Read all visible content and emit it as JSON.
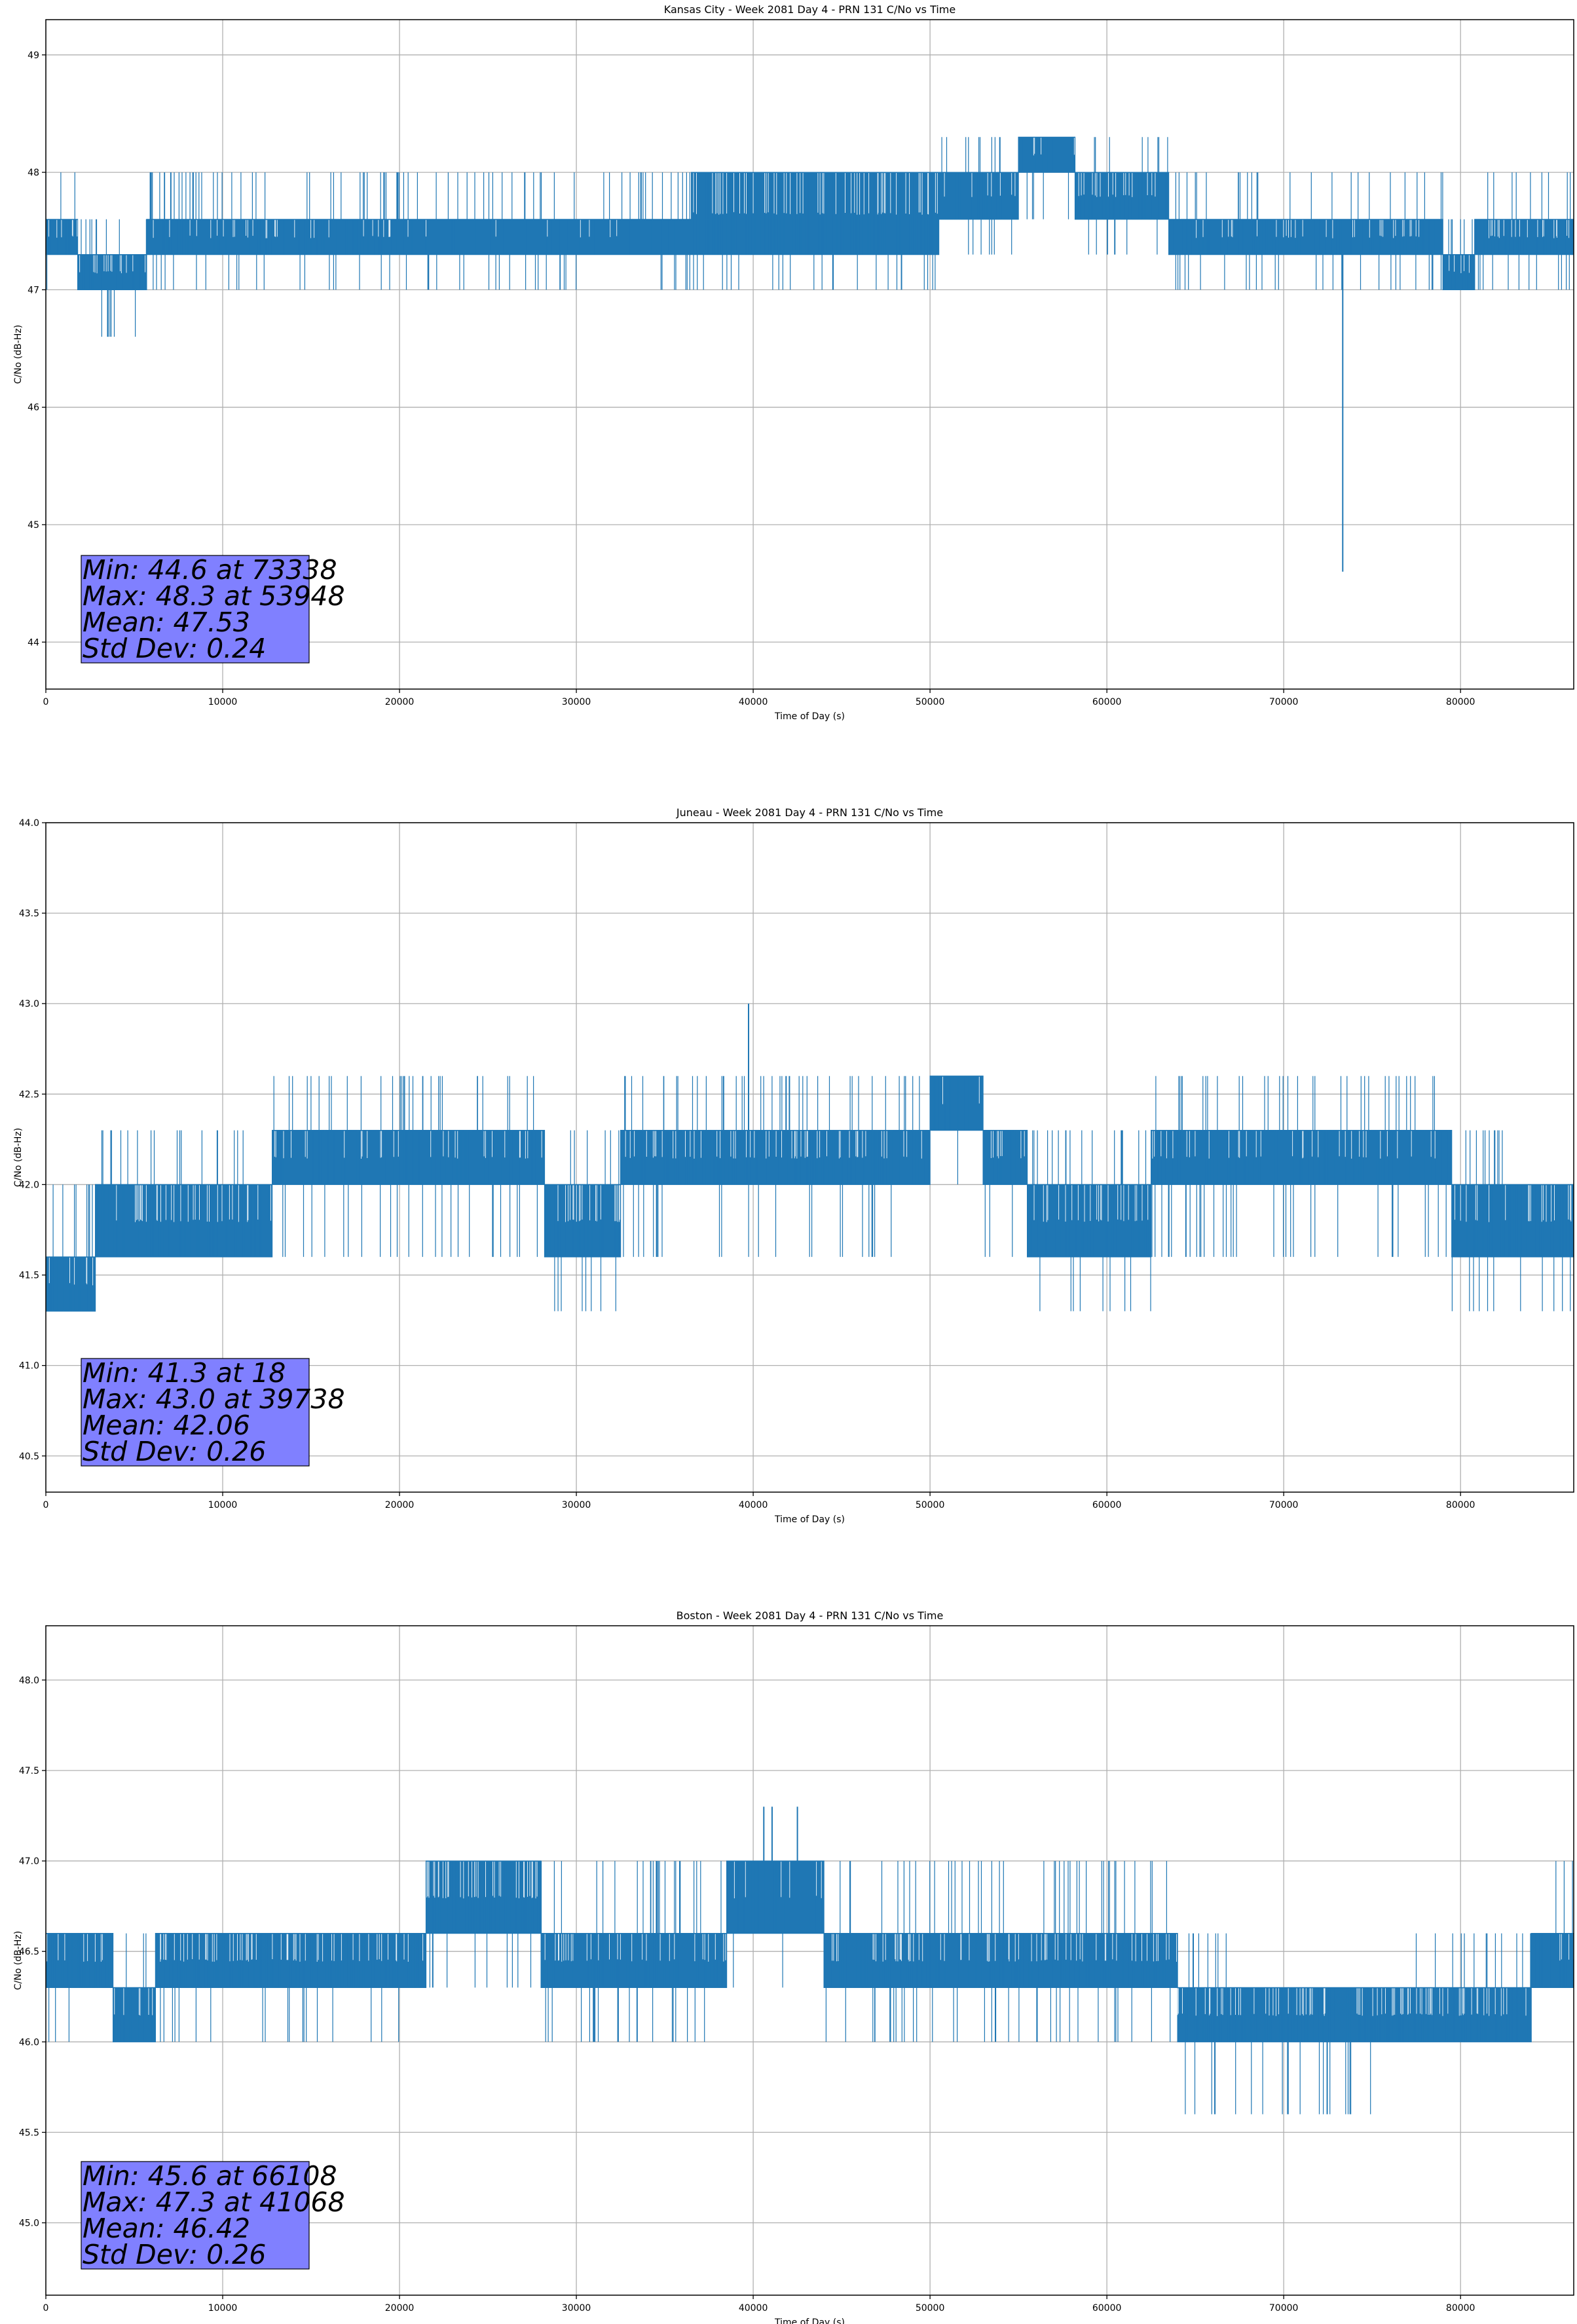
{
  "chart_data": [
    {
      "type": "line",
      "title": "Kansas City - Week 2081 Day 4 - PRN 131 C/No vs Time",
      "xlabel": "Time of Day (s)",
      "ylabel": "C/No (dB-Hz)",
      "xlim": [
        0,
        86400
      ],
      "ylim": [
        43.6,
        49.3
      ],
      "xticks": [
        0,
        10000,
        20000,
        30000,
        40000,
        50000,
        60000,
        70000,
        80000
      ],
      "yticks": [
        "44",
        "45",
        "46",
        "47",
        "48",
        "49"
      ],
      "grid": true,
      "color": "#1f77b4",
      "series": [
        {
          "bands": [
            {
              "x": [
                0,
                1800
              ],
              "lo": 47.3,
              "hi": 47.6,
              "dens": 0.7,
              "slo": 47.0,
              "shi": 48.0
            },
            {
              "x": [
                1800,
                5700
              ],
              "lo": 47.0,
              "hi": 47.3,
              "dens": 0.6,
              "slo": 46.6,
              "shi": 47.6
            },
            {
              "x": [
                5700,
                21500
              ],
              "lo": 47.3,
              "hi": 47.6,
              "dens": 0.85,
              "slo": 47.0,
              "shi": 48.0
            },
            {
              "x": [
                21500,
                36500
              ],
              "lo": 47.3,
              "hi": 47.6,
              "dens": 0.92,
              "slo": 47.0,
              "shi": 48.0
            },
            {
              "x": [
                36500,
                50500
              ],
              "lo": 47.3,
              "hi": 48.0,
              "dens": 0.5,
              "slo": 47.0,
              "shi": 48.0
            },
            {
              "x": [
                50500,
                55000
              ],
              "lo": 47.6,
              "hi": 48.0,
              "dens": 0.8,
              "slo": 47.3,
              "shi": 48.3
            },
            {
              "x": [
                55000,
                58200
              ],
              "lo": 48.0,
              "hi": 48.3,
              "dens": 0.9,
              "slo": 47.6,
              "shi": 48.3
            },
            {
              "x": [
                58200,
                63500
              ],
              "lo": 47.6,
              "hi": 48.0,
              "dens": 0.65,
              "slo": 47.3,
              "shi": 48.3
            },
            {
              "x": [
                63500,
                79000
              ],
              "lo": 47.3,
              "hi": 47.6,
              "dens": 0.8,
              "slo": 47.0,
              "shi": 48.0
            },
            {
              "x": [
                79000,
                80800
              ],
              "lo": 47.0,
              "hi": 47.3,
              "dens": 0.6,
              "slo": 47.0,
              "shi": 47.6
            },
            {
              "x": [
                80800,
                86400
              ],
              "lo": 47.3,
              "hi": 47.6,
              "dens": 0.7,
              "slo": 47.0,
              "shi": 48.0
            }
          ],
          "spikes": [
            [
              73338,
              44.6
            ],
            [
              53948,
              48.3
            ],
            [
              3500,
              46.6
            ]
          ]
        }
      ],
      "stats": {
        "min": "Min: 44.6 at 73338",
        "max": "Max: 48.3 at 53948",
        "mean": "Mean: 47.53",
        "std": "Std Dev: 0.24"
      }
    },
    {
      "type": "line",
      "title": "Juneau - Week 2081 Day 4 - PRN 131 C/No vs Time",
      "xlabel": "Time of Day (s)",
      "ylabel": "C/No (dB-Hz)",
      "xlim": [
        0,
        86400
      ],
      "ylim": [
        40.3,
        44.0
      ],
      "xticks": [
        0,
        10000,
        20000,
        30000,
        40000,
        50000,
        60000,
        70000,
        80000
      ],
      "yticks": [
        "40.5",
        "41.0",
        "41.5",
        "42.0",
        "42.5",
        "43.0",
        "43.5",
        "44.0"
      ],
      "grid": true,
      "color": "#1f77b4",
      "series": [
        {
          "bands": [
            {
              "x": [
                0,
                2800
              ],
              "lo": 41.3,
              "hi": 41.6,
              "dens": 0.7,
              "slo": 41.3,
              "shi": 42.0
            },
            {
              "x": [
                2800,
                12800
              ],
              "lo": 41.6,
              "hi": 42.0,
              "dens": 0.6,
              "slo": 41.6,
              "shi": 42.3
            },
            {
              "x": [
                12800,
                28200
              ],
              "lo": 42.0,
              "hi": 42.3,
              "dens": 0.8,
              "slo": 41.6,
              "shi": 42.6
            },
            {
              "x": [
                28200,
                32500
              ],
              "lo": 41.6,
              "hi": 42.0,
              "dens": 0.6,
              "slo": 41.3,
              "shi": 42.3
            },
            {
              "x": [
                32500,
                50000
              ],
              "lo": 42.0,
              "hi": 42.3,
              "dens": 0.6,
              "slo": 41.6,
              "shi": 42.6
            },
            {
              "x": [
                50000,
                53000
              ],
              "lo": 42.3,
              "hi": 42.6,
              "dens": 0.85,
              "slo": 42.0,
              "shi": 42.6
            },
            {
              "x": [
                53000,
                55500
              ],
              "lo": 42.0,
              "hi": 42.3,
              "dens": 0.6,
              "slo": 41.6,
              "shi": 42.3
            },
            {
              "x": [
                55500,
                62500
              ],
              "lo": 41.6,
              "hi": 42.0,
              "dens": 0.6,
              "slo": 41.3,
              "shi": 42.3
            },
            {
              "x": [
                62500,
                79500
              ],
              "lo": 42.0,
              "hi": 42.3,
              "dens": 0.8,
              "slo": 41.6,
              "shi": 42.6
            },
            {
              "x": [
                79500,
                82500
              ],
              "lo": 41.6,
              "hi": 42.0,
              "dens": 0.65,
              "slo": 41.3,
              "shi": 42.3
            },
            {
              "x": [
                82500,
                86400
              ],
              "lo": 41.6,
              "hi": 42.0,
              "dens": 0.5,
              "slo": 41.3,
              "shi": 42.0
            }
          ],
          "spikes": [
            [
              39738,
              43.0
            ],
            [
              18,
              41.3
            ]
          ]
        }
      ],
      "stats": {
        "min": "Min: 41.3 at 18",
        "max": "Max: 43.0 at 39738",
        "mean": "Mean: 42.06",
        "std": "Std Dev: 0.26"
      }
    },
    {
      "type": "line",
      "title": "Boston - Week 2081 Day 4 - PRN 131 C/No vs Time",
      "xlabel": "Time of Day (s)",
      "ylabel": "C/No (dB-Hz)",
      "xlim": [
        0,
        86400
      ],
      "ylim": [
        44.6,
        48.3
      ],
      "xticks": [
        0,
        10000,
        20000,
        30000,
        40000,
        50000,
        60000,
        70000,
        80000
      ],
      "yticks": [
        "45.0",
        "45.5",
        "46.0",
        "46.5",
        "47.0",
        "47.5",
        "48.0"
      ],
      "grid": true,
      "color": "#1f77b4",
      "series": [
        {
          "bands": [
            {
              "x": [
                0,
                3800
              ],
              "lo": 46.3,
              "hi": 46.6,
              "dens": 0.7,
              "slo": 46.0,
              "shi": 46.6
            },
            {
              "x": [
                3800,
                6200
              ],
              "lo": 46.0,
              "hi": 46.3,
              "dens": 0.8,
              "slo": 46.0,
              "shi": 46.6
            },
            {
              "x": [
                6200,
                21500
              ],
              "lo": 46.3,
              "hi": 46.6,
              "dens": 0.55,
              "slo": 46.0,
              "shi": 46.6
            },
            {
              "x": [
                21500,
                28000
              ],
              "lo": 46.6,
              "hi": 47.0,
              "dens": 0.5,
              "slo": 46.3,
              "shi": 47.0
            },
            {
              "x": [
                28000,
                38500
              ],
              "lo": 46.3,
              "hi": 46.6,
              "dens": 0.7,
              "slo": 46.0,
              "shi": 47.0
            },
            {
              "x": [
                38500,
                44000
              ],
              "lo": 46.6,
              "hi": 47.0,
              "dens": 0.8,
              "slo": 46.3,
              "shi": 47.0
            },
            {
              "x": [
                44000,
                64000
              ],
              "lo": 46.3,
              "hi": 46.6,
              "dens": 0.7,
              "slo": 46.0,
              "shi": 47.0
            },
            {
              "x": [
                64000,
                67000
              ],
              "lo": 46.0,
              "hi": 46.3,
              "dens": 0.6,
              "slo": 45.6,
              "shi": 46.6
            },
            {
              "x": [
                67000,
                75000
              ],
              "lo": 46.0,
              "hi": 46.3,
              "dens": 0.6,
              "slo": 45.6,
              "shi": 46.3
            },
            {
              "x": [
                75000,
                84000
              ],
              "lo": 46.0,
              "hi": 46.3,
              "dens": 0.5,
              "slo": 46.0,
              "shi": 46.6
            },
            {
              "x": [
                84000,
                86400
              ],
              "lo": 46.3,
              "hi": 46.6,
              "dens": 0.75,
              "slo": 46.3,
              "shi": 47.0
            }
          ],
          "spikes": [
            [
              41068,
              47.3
            ],
            [
              40600,
              47.3
            ],
            [
              42500,
              47.3
            ],
            [
              66108,
              45.6
            ]
          ]
        }
      ],
      "stats": {
        "min": "Min: 45.6 at 66108",
        "max": "Max: 47.3 at 41068",
        "mean": "Mean: 46.42",
        "std": "Std Dev: 0.26"
      }
    }
  ]
}
